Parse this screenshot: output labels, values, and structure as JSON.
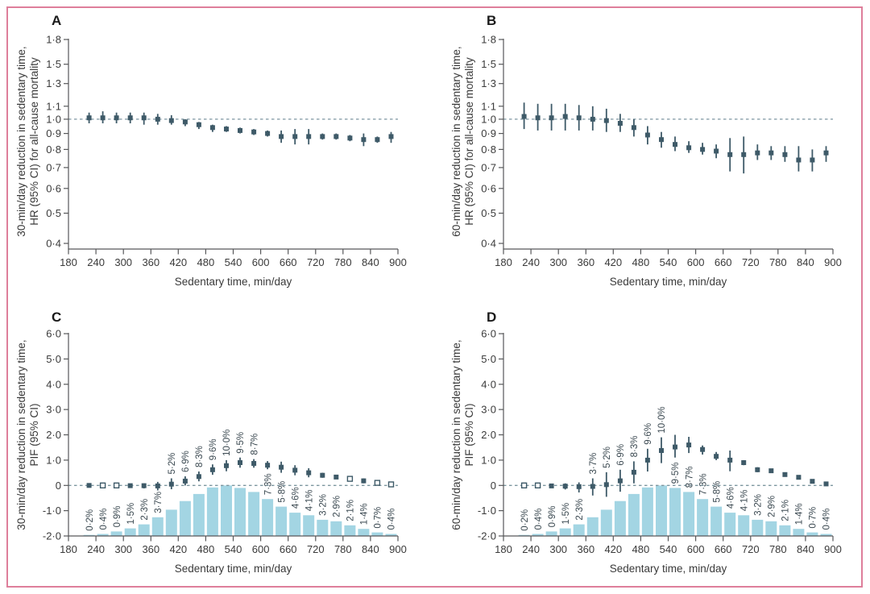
{
  "figure": {
    "background": "#ffffff",
    "border_color": "#de7f9b",
    "colors": {
      "marker": "#3e5a68",
      "ci_line": "#3e5a68",
      "dashed_ref": "#7d96a0",
      "bar_fill": "#a3d5e3",
      "axis_line": "#57585a",
      "tick_text": "#3a3a3a",
      "pct_label_text": "#3c4a52",
      "panel_letter": "#1a1a1a"
    },
    "xlabel": "Sedentary time, min/day",
    "xticks": [
      180,
      240,
      300,
      360,
      420,
      480,
      540,
      600,
      660,
      720,
      780,
      840,
      900
    ]
  },
  "chart_data": [
    {
      "panel": "A",
      "type": "scatter",
      "yscale": "log",
      "ylim": [
        0.4,
        1.8
      ],
      "refline": 1.0,
      "ylabel_lines": [
        "30-min/day reduction in sedentary time,",
        "HR (95% CI) for all-cause mortality"
      ],
      "xlabel": "Sedentary time, min/day",
      "yticks": [
        {
          "v": 1.8,
          "label": "1·8"
        },
        {
          "v": 1.5,
          "label": "1·5"
        },
        {
          "v": 1.3,
          "label": "1·3"
        },
        {
          "v": 1.1,
          "label": "1·1"
        },
        {
          "v": 1.0,
          "label": "1·0"
        },
        {
          "v": 0.9,
          "label": "0·9"
        },
        {
          "v": 0.8,
          "label": "0·8"
        },
        {
          "v": 0.7,
          "label": "0·7"
        },
        {
          "v": 0.6,
          "label": "0·6"
        },
        {
          "v": 0.5,
          "label": "0·5"
        },
        {
          "v": 0.4,
          "label": "0·4"
        }
      ],
      "x": [
        225,
        255,
        285,
        315,
        345,
        375,
        405,
        435,
        465,
        495,
        525,
        555,
        585,
        615,
        645,
        675,
        705,
        735,
        765,
        795,
        825,
        855,
        885
      ],
      "y": [
        1.01,
        1.01,
        1.01,
        1.01,
        1.01,
        1.0,
        0.99,
        0.98,
        0.96,
        0.94,
        0.93,
        0.92,
        0.91,
        0.9,
        0.88,
        0.88,
        0.88,
        0.88,
        0.88,
        0.87,
        0.86,
        0.86,
        0.88
      ],
      "lo": [
        0.97,
        0.97,
        0.97,
        0.97,
        0.96,
        0.96,
        0.96,
        0.95,
        0.93,
        0.91,
        0.91,
        0.9,
        0.89,
        0.88,
        0.84,
        0.83,
        0.83,
        0.86,
        0.86,
        0.85,
        0.82,
        0.84,
        0.84
      ],
      "hi": [
        1.05,
        1.06,
        1.05,
        1.05,
        1.05,
        1.04,
        1.03,
        1.0,
        0.98,
        0.96,
        0.95,
        0.94,
        0.93,
        0.92,
        0.92,
        0.93,
        0.93,
        0.9,
        0.9,
        0.89,
        0.9,
        0.88,
        0.91
      ],
      "open_x": []
    },
    {
      "panel": "B",
      "type": "scatter",
      "yscale": "log",
      "ylim": [
        0.4,
        1.8
      ],
      "refline": 1.0,
      "ylabel_lines": [
        "60-min/day reduction in sedentary time,",
        "HR (95% CI) for all-cause mortality"
      ],
      "xlabel": "Sedentary time, min/day",
      "yticks": [
        {
          "v": 1.8,
          "label": "1·8"
        },
        {
          "v": 1.5,
          "label": "1·5"
        },
        {
          "v": 1.3,
          "label": "1·3"
        },
        {
          "v": 1.1,
          "label": "1·1"
        },
        {
          "v": 1.0,
          "label": "1·0"
        },
        {
          "v": 0.9,
          "label": "0·9"
        },
        {
          "v": 0.8,
          "label": "0·8"
        },
        {
          "v": 0.7,
          "label": "0·7"
        },
        {
          "v": 0.6,
          "label": "0·6"
        },
        {
          "v": 0.5,
          "label": "0·5"
        },
        {
          "v": 0.4,
          "label": "0·4"
        }
      ],
      "x": [
        225,
        255,
        285,
        315,
        345,
        375,
        405,
        435,
        465,
        495,
        525,
        555,
        585,
        615,
        645,
        675,
        705,
        735,
        765,
        795,
        825,
        855,
        885
      ],
      "y": [
        1.02,
        1.01,
        1.01,
        1.02,
        1.01,
        1.0,
        0.99,
        0.97,
        0.94,
        0.89,
        0.86,
        0.83,
        0.81,
        0.8,
        0.79,
        0.77,
        0.77,
        0.78,
        0.78,
        0.77,
        0.74,
        0.74,
        0.78
      ],
      "lo": [
        0.93,
        0.92,
        0.92,
        0.92,
        0.92,
        0.92,
        0.91,
        0.91,
        0.88,
        0.83,
        0.81,
        0.79,
        0.78,
        0.77,
        0.75,
        0.68,
        0.67,
        0.74,
        0.74,
        0.73,
        0.68,
        0.68,
        0.73
      ],
      "hi": [
        1.13,
        1.12,
        1.12,
        1.12,
        1.11,
        1.1,
        1.08,
        1.04,
        1.0,
        0.95,
        0.91,
        0.88,
        0.85,
        0.84,
        0.83,
        0.87,
        0.88,
        0.83,
        0.82,
        0.82,
        0.82,
        0.8,
        0.82
      ],
      "open_x": []
    },
    {
      "panel": "C",
      "type": "scatter+bar",
      "yscale": "linear",
      "ylim": [
        -2.0,
        6.0
      ],
      "refline": 0,
      "ylabel_lines": [
        "30-min/day reduction in sedentary time,",
        "PIF (95% CI)"
      ],
      "xlabel": "Sedentary time, min/day",
      "yticks": [
        {
          "v": 6,
          "label": "6·0"
        },
        {
          "v": 5,
          "label": "5·0"
        },
        {
          "v": 4,
          "label": "4·0"
        },
        {
          "v": 3,
          "label": "3·0"
        },
        {
          "v": 2,
          "label": "2·0"
        },
        {
          "v": 1,
          "label": "1·0"
        },
        {
          "v": 0,
          "label": "0"
        },
        {
          "v": -1,
          "label": "-1·0"
        },
        {
          "v": -2,
          "label": "-2·0"
        }
      ],
      "x": [
        225,
        255,
        285,
        315,
        345,
        375,
        405,
        435,
        465,
        495,
        525,
        555,
        585,
        615,
        645,
        675,
        705,
        735,
        765,
        795,
        825,
        855,
        885
      ],
      "y": [
        0.0,
        0.0,
        0.0,
        -0.01,
        -0.01,
        -0.02,
        0.05,
        0.17,
        0.35,
        0.62,
        0.78,
        0.9,
        0.87,
        0.8,
        0.72,
        0.6,
        0.5,
        0.4,
        0.33,
        0.26,
        0.18,
        0.1,
        0.04
      ],
      "lo": [
        -0.02,
        -0.03,
        -0.05,
        -0.08,
        -0.12,
        -0.2,
        -0.15,
        0.0,
        0.16,
        0.42,
        0.56,
        0.7,
        0.7,
        0.64,
        0.5,
        0.4,
        0.32,
        0.3,
        0.25,
        0.2,
        0.08,
        0.02,
        -0.02
      ],
      "hi": [
        0.02,
        0.03,
        0.04,
        0.05,
        0.08,
        0.14,
        0.28,
        0.36,
        0.55,
        0.83,
        1.0,
        1.1,
        1.04,
        0.96,
        0.94,
        0.8,
        0.68,
        0.5,
        0.41,
        0.32,
        0.28,
        0.18,
        0.1
      ],
      "open_x": [
        255,
        285,
        795,
        855,
        885
      ],
      "bars": {
        "pct_values": [
          0.2,
          0.4,
          0.9,
          1.5,
          2.3,
          3.7,
          5.2,
          6.9,
          8.3,
          9.6,
          10.0,
          9.5,
          8.7,
          7.3,
          5.8,
          4.6,
          4.1,
          3.2,
          2.9,
          2.1,
          1.4,
          0.7,
          0.4
        ],
        "pct_labels": [
          "0·2%",
          "0·4%",
          "0·9%",
          "1·5%",
          "2·3%",
          "3·7%",
          "5·2%",
          "6·9%",
          "8·3%",
          "9·6%",
          "10·0%",
          "9·5%",
          "8·7%",
          "7·3%",
          "5·8%",
          "4·6%",
          "4·1%",
          "3·2%",
          "2·9%",
          "2·1%",
          "1·4%",
          "0·7%",
          "0·4%"
        ],
        "pct_axis_max": 10.0,
        "labels_above_point_x": [
          405,
          435,
          465,
          495,
          525,
          555,
          585
        ]
      }
    },
    {
      "panel": "D",
      "type": "scatter+bar",
      "yscale": "linear",
      "ylim": [
        -2.0,
        6.0
      ],
      "refline": 0,
      "ylabel_lines": [
        "60-min/day reduction in sedentary time,",
        "PIF (95% CI)"
      ],
      "xlabel": "Sedentary time, min/day",
      "yticks": [
        {
          "v": 6,
          "label": "6·0"
        },
        {
          "v": 5,
          "label": "5·0"
        },
        {
          "v": 4,
          "label": "4·0"
        },
        {
          "v": 3,
          "label": "3·0"
        },
        {
          "v": 2,
          "label": "2·0"
        },
        {
          "v": 1,
          "label": "1·0"
        },
        {
          "v": 0,
          "label": "0"
        },
        {
          "v": -1,
          "label": "-1·0"
        },
        {
          "v": -2,
          "label": "-2·0"
        }
      ],
      "x": [
        225,
        255,
        285,
        315,
        345,
        375,
        405,
        435,
        465,
        495,
        525,
        555,
        585,
        615,
        645,
        675,
        705,
        735,
        765,
        795,
        825,
        855,
        885
      ],
      "y": [
        0.0,
        0.0,
        -0.02,
        -0.03,
        -0.05,
        -0.04,
        0.03,
        0.18,
        0.52,
        1.0,
        1.38,
        1.52,
        1.6,
        1.42,
        1.15,
        1.0,
        0.9,
        0.62,
        0.58,
        0.43,
        0.32,
        0.16,
        0.06
      ],
      "lo": [
        -0.03,
        -0.05,
        -0.1,
        -0.16,
        -0.28,
        -0.4,
        -0.45,
        -0.25,
        0.08,
        0.55,
        0.88,
        1.1,
        1.28,
        1.22,
        1.0,
        0.56,
        0.8,
        0.52,
        0.5,
        0.36,
        0.24,
        0.08,
        0.0
      ],
      "hi": [
        0.03,
        0.05,
        0.05,
        0.08,
        0.12,
        0.28,
        0.52,
        0.62,
        0.95,
        1.45,
        1.9,
        2.0,
        1.92,
        1.58,
        1.32,
        1.38,
        1.0,
        0.72,
        0.66,
        0.5,
        0.4,
        0.24,
        0.12
      ],
      "open_x": [
        225,
        255
      ],
      "bars": {
        "pct_values": [
          0.2,
          0.4,
          0.9,
          1.5,
          2.3,
          3.7,
          5.2,
          6.9,
          8.3,
          9.6,
          10.0,
          9.5,
          8.7,
          7.3,
          5.8,
          4.6,
          4.1,
          3.2,
          2.9,
          2.1,
          1.4,
          0.7,
          0.4
        ],
        "pct_labels": [
          "0·2%",
          "0·4%",
          "0·9%",
          "1·5%",
          "2·3%",
          "3·7%",
          "5·2%",
          "6·9%",
          "8·3%",
          "9·6%",
          "10·0%",
          "9·5%",
          "8·7%",
          "7·3%",
          "5·8%",
          "4·6%",
          "4·1%",
          "3·2%",
          "2·9%",
          "2·1%",
          "1·4%",
          "0·7%",
          "0·4%"
        ],
        "pct_axis_max": 10.0,
        "labels_above_point_x": [
          375,
          405,
          435,
          465,
          495,
          525
        ]
      }
    }
  ]
}
